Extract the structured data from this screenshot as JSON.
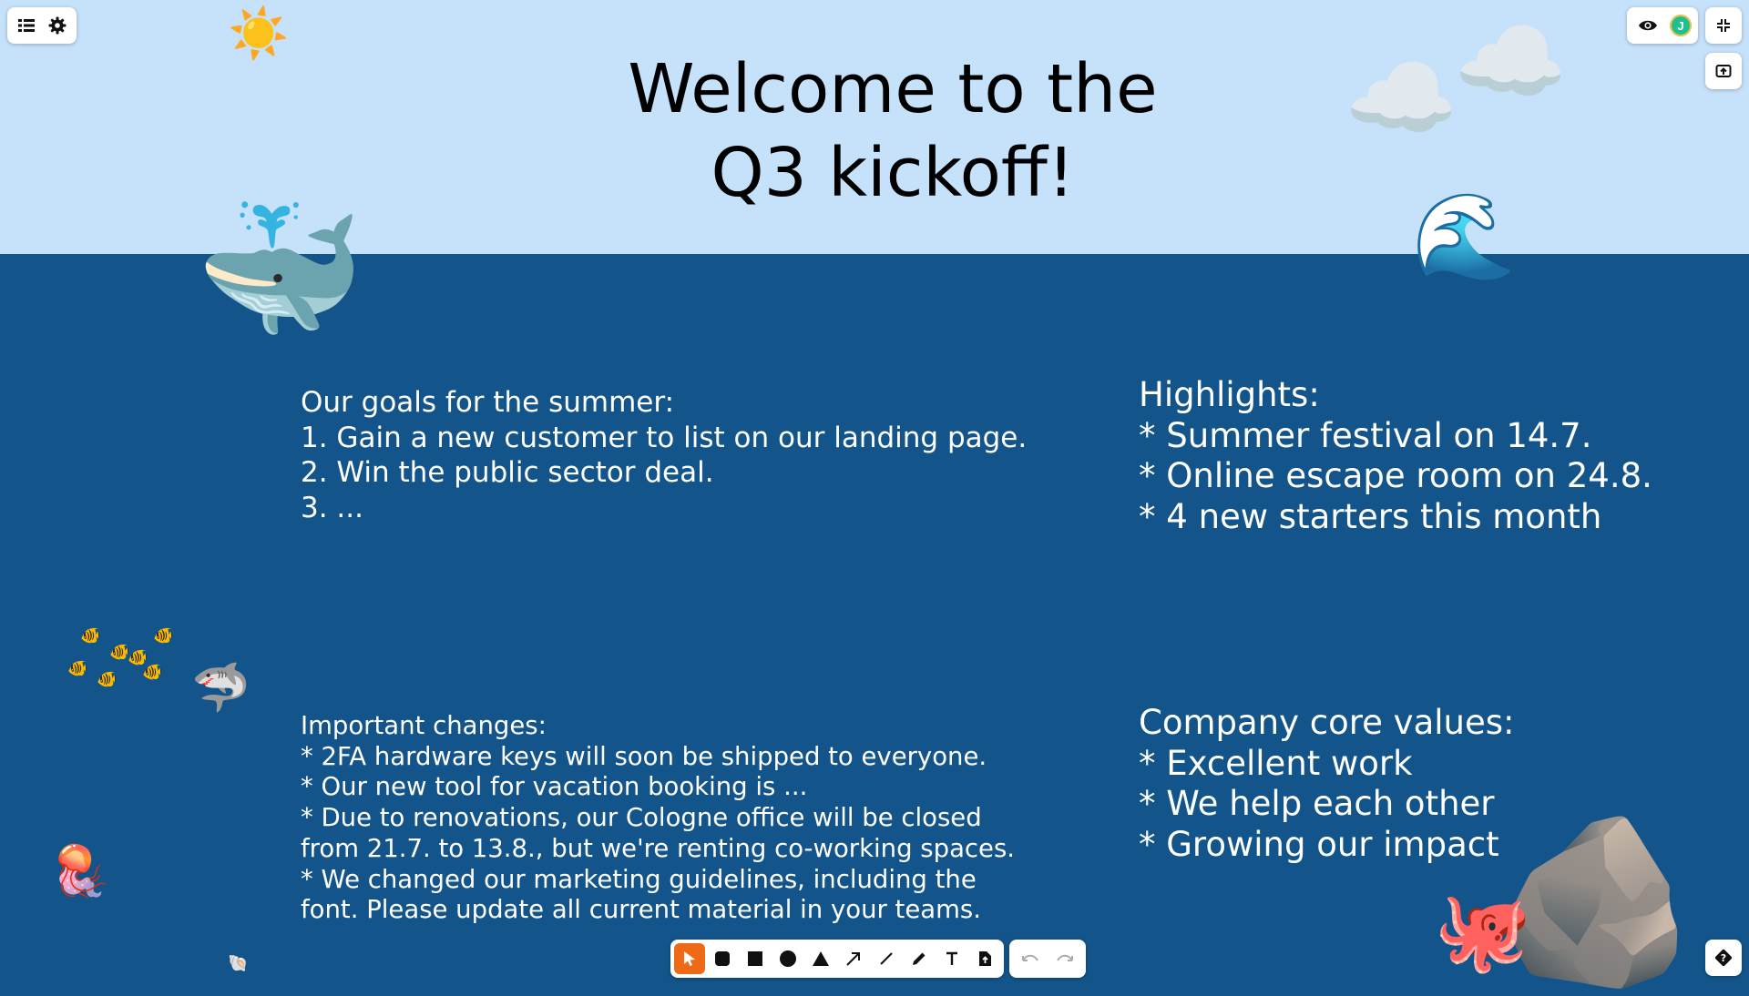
{
  "title": {
    "line1": "Welcome to the",
    "line2": "Q3 kickoff!"
  },
  "goals": {
    "lines": [
      "Our goals for the summer:",
      "1. Gain a new customer to list on our landing page.",
      "2. Win the public sector deal.",
      "3. ..."
    ]
  },
  "highlights": {
    "lines": [
      "Highlights:",
      "* Summer festival on 14.7.",
      "* Online escape room on 24.8.",
      "* 4 new starters this month"
    ]
  },
  "changes": {
    "lines": [
      "Important changes:",
      "* 2FA hardware keys will soon be shipped to everyone.",
      "* Our new tool for vacation booking is ...",
      "* Due to renovations, our Cologne office will be closed",
      "from 21.7. to 13.8., but we're renting co-working spaces.",
      "* We changed our marketing guidelines, including the",
      "font. Please update all current material in your teams."
    ]
  },
  "values": {
    "lines": [
      "Company core values:",
      "* Excellent work",
      "* We help each other",
      "* Growing our impact"
    ]
  },
  "decorations": {
    "sun": "☀️",
    "whale": "🐳",
    "wave": "🌊",
    "cloud": "☁️",
    "fish": "🐠",
    "shark": "🦈",
    "jellyfish": "🪼",
    "octopus": "🐙",
    "rock": "🪨",
    "shell": "🐚"
  },
  "user": {
    "avatar_initial": "J",
    "avatar_color": "#1fbf8f"
  },
  "colors": {
    "sky": "#c6e1fa",
    "sea": "#13558a",
    "accent": "#ef6a16"
  },
  "toolbar": {
    "tools": [
      "select-tool",
      "rounded-rect-tool",
      "rect-tool",
      "ellipse-tool",
      "triangle-tool",
      "arrow-tool",
      "line-tool",
      "pen-tool",
      "text-tool",
      "file-tool"
    ],
    "active_tool": "select-tool"
  }
}
